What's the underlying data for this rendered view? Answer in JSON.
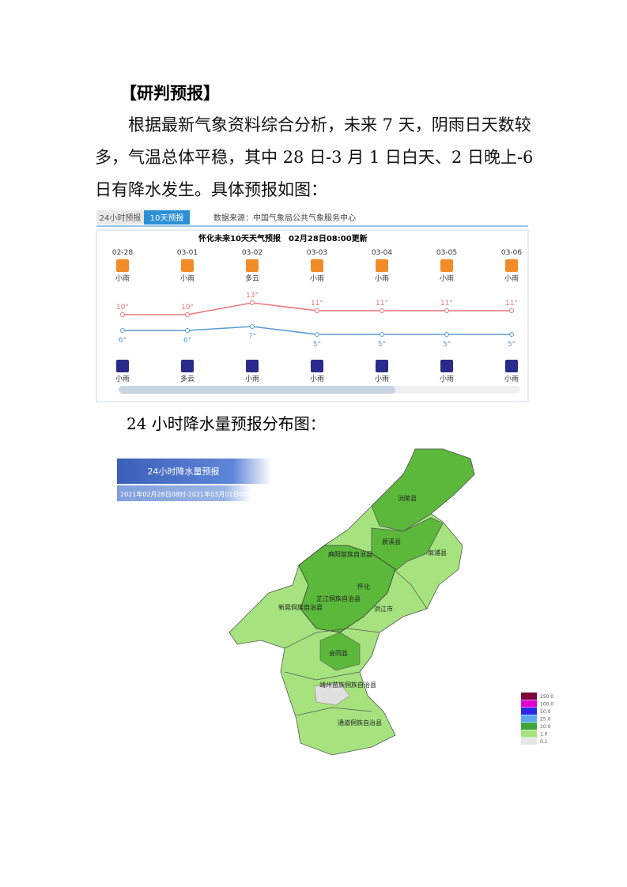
{
  "header": {
    "title": "【研判预报】"
  },
  "paragraphs": [
    "根据最新气象资料综合分析，未来 7 天，阴雨日天数较多，气温总体平稳，其中 28 日-3 月 1 日白天、2 日晚上-6 日有降水发生。具体预报如图：",
    "24 小时降水量预报分布图："
  ],
  "widget": {
    "tabs": [
      "24小时预报",
      "10天预报"
    ],
    "source": "数据来源：中国气象局公共气象服务中心"
  },
  "chart_data": {
    "type": "line",
    "title": "怀化未来10天天气预报",
    "subtitle": "02月28日08:00更新",
    "categories": [
      "02-28",
      "03-01",
      "03-02",
      "03-03",
      "03-04",
      "03-05",
      "03-06"
    ],
    "day_weather": [
      "小雨",
      "小雨",
      "多云",
      "小雨",
      "小雨",
      "小雨",
      "小雨"
    ],
    "night_weather": [
      "小雨",
      "多云",
      "小雨",
      "小雨",
      "小雨",
      "小雨",
      "小雨"
    ],
    "series": [
      {
        "color": "#e8777a",
        "values": [
          10,
          10,
          13,
          11,
          11,
          11,
          11
        ],
        "value_labels": [
          "10°",
          "10°",
          "13°",
          "11°",
          "11°",
          "11°",
          "11°"
        ]
      },
      {
        "color": "#5b9bd5",
        "values": [
          6,
          6,
          7,
          5,
          5,
          5,
          5
        ],
        "value_labels": [
          "6°",
          "6°",
          "7°",
          "5°",
          "5°",
          "5°",
          "5°"
        ]
      }
    ]
  },
  "map": {
    "title": "24小时降水量预报",
    "time": "2021年02月28日08时-2021年03月01日08时",
    "labels": [
      "沅陵县",
      "辰溪县",
      "溆浦县",
      "麻阳苗族自治县",
      "怀化",
      "芷江侗族自治县",
      "洪江市",
      "新晃侗族自治县",
      "会同县",
      "靖州苗族侗族自治县",
      "通道侗族自治县"
    ],
    "legend": [
      {
        "label": "250.0",
        "color": "#7a0a3a"
      },
      {
        "label": "100.0",
        "color": "#e000d0"
      },
      {
        "label": "50.0",
        "color": "#2a2ae6"
      },
      {
        "label": "25.0",
        "color": "#5aa8f0"
      },
      {
        "label": "10.0",
        "color": "#3da83a"
      },
      {
        "label": "1.0",
        "color": "#a6e37e"
      },
      {
        "label": "0.1",
        "color": "#e6e6e6"
      }
    ]
  }
}
